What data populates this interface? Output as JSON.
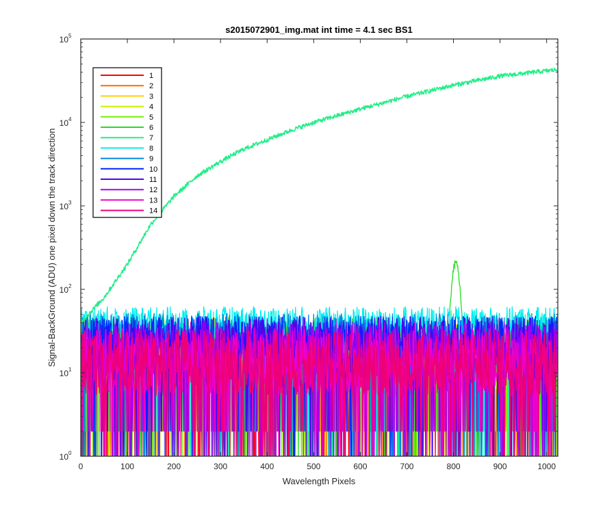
{
  "chart_data": {
    "type": "line",
    "title": "s2015072901_img.mat int time = 4.1 sec   BS1",
    "xlabel": "Wavelength Pixels",
    "ylabel": "Signal-BackGround (ADU) one pixel down the track direction",
    "xlim": [
      0,
      1024
    ],
    "ylim": [
      1,
      100000
    ],
    "yscale": "log",
    "grid": false,
    "legend_position": "top-left",
    "x_ticks": [
      0,
      100,
      200,
      300,
      400,
      500,
      600,
      700,
      800,
      900,
      1000
    ],
    "y_ticks": [
      {
        "value": 1,
        "base": "10",
        "exp": "0"
      },
      {
        "value": 10,
        "base": "10",
        "exp": "1"
      },
      {
        "value": 100,
        "base": "10",
        "exp": "2"
      },
      {
        "value": 1000,
        "base": "10",
        "exp": "3"
      },
      {
        "value": 10000,
        "base": "10",
        "exp": "4"
      },
      {
        "value": 100000,
        "base": "10",
        "exp": "5"
      }
    ],
    "series": [
      {
        "name": "1",
        "color": "#ff0000",
        "kind": "noise",
        "level": 13,
        "spread": 2.2
      },
      {
        "name": "2",
        "color": "#ff6a00",
        "kind": "noise",
        "level": 14,
        "spread": 2.1
      },
      {
        "name": "3",
        "color": "#ffcc00",
        "kind": "noise",
        "level": 15,
        "spread": 2.1
      },
      {
        "name": "4",
        "color": "#ccee00",
        "kind": "noise",
        "level": 16,
        "spread": 2.0
      },
      {
        "name": "5",
        "color": "#77ee00",
        "kind": "noise",
        "level": 20,
        "spread": 1.9
      },
      {
        "name": "6",
        "color": "#22dd22",
        "kind": "noise_peak",
        "level": 22,
        "spread": 1.8,
        "peak": {
          "x": 805,
          "y": 210
        }
      },
      {
        "name": "7",
        "color": "#22ee88",
        "kind": "signal",
        "points": [
          [
            0,
            40
          ],
          [
            50,
            80
          ],
          [
            100,
            200
          ],
          [
            150,
            600
          ],
          [
            200,
            1300
          ],
          [
            250,
            2300
          ],
          [
            300,
            3400
          ],
          [
            350,
            4800
          ],
          [
            400,
            6200
          ],
          [
            450,
            8000
          ],
          [
            500,
            10000
          ],
          [
            600,
            14500
          ],
          [
            700,
            20500
          ],
          [
            800,
            28000
          ],
          [
            900,
            36000
          ],
          [
            1024,
            43000
          ]
        ]
      },
      {
        "name": "8",
        "color": "#00eeee",
        "kind": "noise",
        "level": 40,
        "spread": 1.4
      },
      {
        "name": "9",
        "color": "#0088dd",
        "kind": "noise",
        "level": 28,
        "spread": 1.6
      },
      {
        "name": "10",
        "color": "#0022ff",
        "kind": "noise",
        "level": 24,
        "spread": 1.7
      },
      {
        "name": "11",
        "color": "#5500ee",
        "kind": "noise",
        "level": 22,
        "spread": 1.8
      },
      {
        "name": "12",
        "color": "#aa00ee",
        "kind": "noise",
        "level": 18,
        "spread": 1.9
      },
      {
        "name": "13",
        "color": "#ee00cc",
        "kind": "noise",
        "level": 14,
        "spread": 2.0
      },
      {
        "name": "14",
        "color": "#ee0077",
        "kind": "noise",
        "level": 13,
        "spread": 2.0
      }
    ]
  }
}
